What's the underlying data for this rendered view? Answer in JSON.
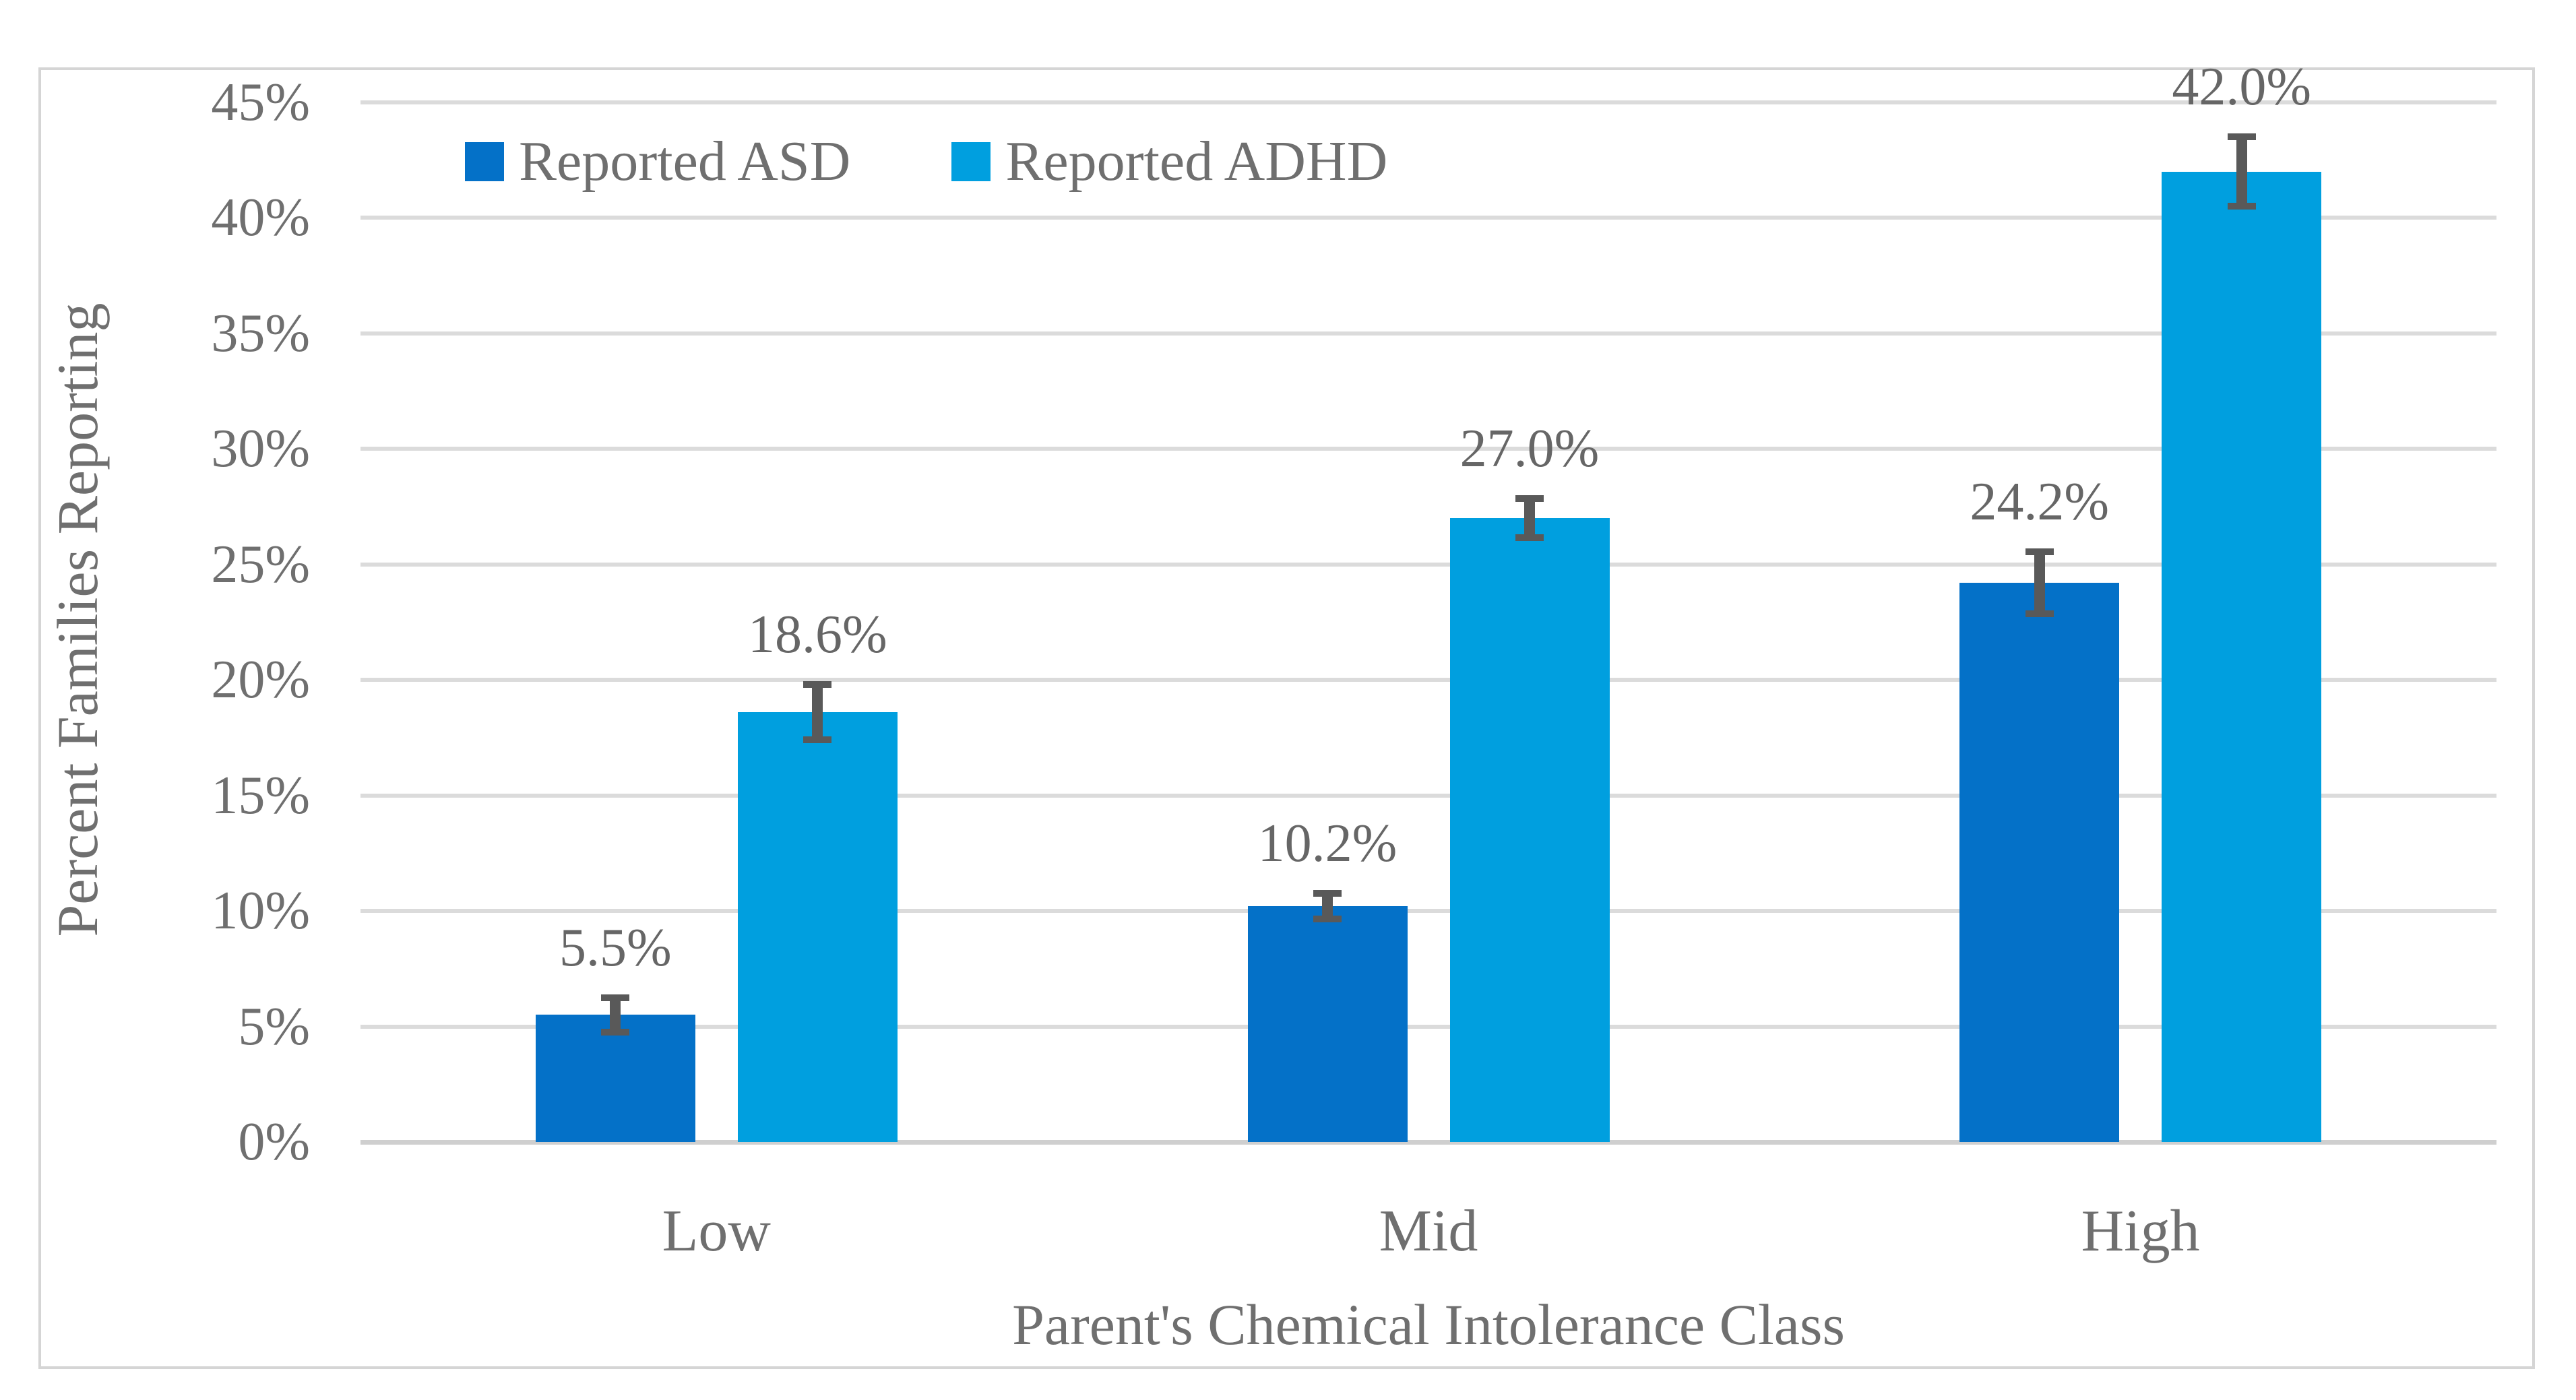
{
  "figure": {
    "y_axis_title": "Percent Families Reporting",
    "x_axis_title": "Parent's Chemical Intolerance Class"
  },
  "chart_data": {
    "type": "bar",
    "categories": [
      "Low",
      "Mid",
      "High"
    ],
    "series": [
      {
        "name": "Reported ASD",
        "color": "#0471c8",
        "values": [
          5.5,
          10.2,
          24.2
        ],
        "errors": [
          0.75,
          0.55,
          1.35
        ],
        "data_labels": [
          "5.5%",
          "10.2%",
          "24.2%"
        ]
      },
      {
        "name": "Reported ADHD",
        "color": "#009fdf",
        "values": [
          18.6,
          27.0,
          42.0
        ],
        "errors": [
          1.2,
          0.85,
          1.5
        ],
        "data_labels": [
          "18.6%",
          "27.0%",
          "42.0%"
        ]
      }
    ],
    "xlabel": "Parent's Chemical Intolerance Class",
    "ylabel": "Percent Families Reporting",
    "ylim": [
      0,
      45
    ],
    "ytick_step": 5,
    "ytick_labels": [
      "0%",
      "5%",
      "10%",
      "15%",
      "20%",
      "25%",
      "30%",
      "35%",
      "40%",
      "45%"
    ],
    "grid": true,
    "legend_position": "top-inside",
    "error_bars": true,
    "colors": {
      "gridline": "#dbdbdb",
      "axis_line": "#cfcfcf",
      "text": "#6f6f6f",
      "data_label_text": "#666666",
      "error_bar": "#595959",
      "figure_border": "#d5d5d5",
      "background": "#ffffff"
    }
  }
}
